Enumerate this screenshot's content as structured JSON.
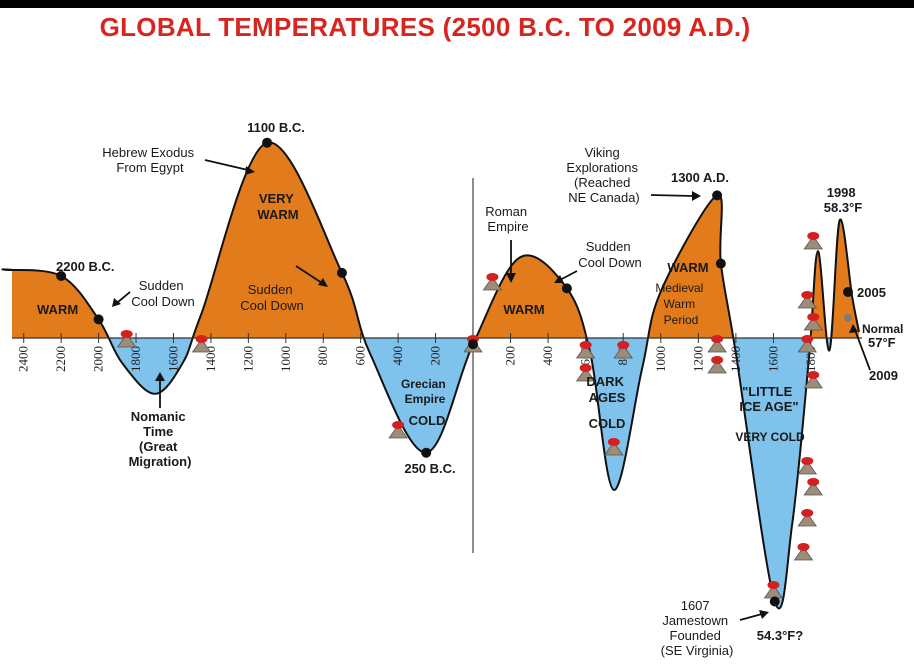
{
  "colors": {
    "title": "#d7261f",
    "warm": "#e27b1c",
    "cold": "#7fc2ec",
    "outline": "#111111",
    "normal": "#2e9a5c",
    "eruption": "#d42020",
    "volcano": "#9c8c78",
    "dot": "#111111"
  },
  "chart_data": {
    "type": "area",
    "title": "GLOBAL TEMPERATURES (2500 B.C. TO 2009 A.D.)",
    "baseline_label": "Normal",
    "baseline_value": "57°F",
    "x_ticks_bc": [
      "2400",
      "2200",
      "2000",
      "1800",
      "1600",
      "1400",
      "1200",
      "1000",
      "800",
      "600",
      "400",
      "200"
    ],
    "x_ticks_ad": [
      "200",
      "400",
      "600",
      "800",
      "1000",
      "1200",
      "1400",
      "1600",
      "1800"
    ],
    "curve": [
      {
        "year": -2500,
        "anomaly": 2.2
      },
      {
        "year": -2200,
        "anomaly": 2.0
      },
      {
        "year": -2000,
        "anomaly": 0.6
      },
      {
        "year": -1875,
        "anomaly": -0.8
      },
      {
        "year": -1700,
        "anomaly": -1.8
      },
      {
        "year": -1550,
        "anomaly": -0.8
      },
      {
        "year": -1450,
        "anomaly": 0.8
      },
      {
        "year": -1100,
        "anomaly": 6.3
      },
      {
        "year": -700,
        "anomaly": 2.1
      },
      {
        "year": -550,
        "anomaly": -0.5
      },
      {
        "year": -250,
        "anomaly": -3.7
      },
      {
        "year": 0,
        "anomaly": -0.2
      },
      {
        "year": 250,
        "anomaly": 2.6
      },
      {
        "year": 500,
        "anomaly": 1.6
      },
      {
        "year": 625,
        "anomaly": -0.5
      },
      {
        "year": 750,
        "anomaly": -4.9
      },
      {
        "year": 900,
        "anomaly": -1.0
      },
      {
        "year": 1000,
        "anomaly": 1.5
      },
      {
        "year": 1300,
        "anomaly": 4.6
      },
      {
        "year": 1320,
        "anomaly": 2.4
      },
      {
        "year": 1400,
        "anomaly": -0.5
      },
      {
        "year": 1607,
        "anomaly": -8.5
      },
      {
        "year": 1700,
        "anomaly": -6.0
      },
      {
        "year": 1790,
        "anomaly": -0.6
      },
      {
        "year": 1830,
        "anomaly": 2.8
      },
      {
        "year": 1880,
        "anomaly": -0.4
      },
      {
        "year": 1925,
        "anomaly": 3.8
      },
      {
        "year": 1980,
        "anomaly": 1.3
      },
      {
        "year": 2009,
        "anomaly": 0.2
      }
    ],
    "markers": [
      {
        "year": -2200,
        "label": "2200 B.C."
      },
      {
        "year": -1100,
        "label": "1100 B.C."
      },
      {
        "year": -250,
        "label": "250 B.C."
      },
      {
        "year": 1300,
        "label": "1300 A.D."
      },
      {
        "year": 1607,
        "label": "54.3°F?"
      },
      {
        "year": 1998,
        "label": "1998"
      },
      {
        "year": 2005,
        "label": "2005"
      },
      {
        "year": 2009,
        "label": "2009"
      }
    ]
  },
  "annotations": {
    "warm_1": "WARM",
    "marker_2200bc": "2200 B.C.",
    "sudden_cool_1": [
      "Sudden",
      "Cool Down"
    ],
    "nomanic": [
      "Nomanic",
      "Time",
      "(Great",
      "Migration)"
    ],
    "hebrew_exodus": [
      "Hebrew Exodus",
      "From Egypt"
    ],
    "marker_1100bc": "1100 B.C.",
    "very_warm": [
      "VERY",
      "WARM"
    ],
    "sudden_cool_2": [
      "Sudden",
      "Cool Down"
    ],
    "grecian": [
      "Grecian",
      "Empire"
    ],
    "cold_1": "COLD",
    "marker_250bc": "250 B.C.",
    "roman": [
      "Roman",
      "Empire"
    ],
    "warm_2": "WARM",
    "sudden_cool_3": [
      "Sudden",
      "Cool Down"
    ],
    "dark_ages": [
      "DARK",
      "AGES"
    ],
    "cold_2": "COLD",
    "viking": [
      "Viking",
      "Explorations",
      "(Reached",
      "NE Canada)"
    ],
    "marker_1300ad": "1300 A.D.",
    "warm_3": "WARM",
    "medieval": [
      "Medieval",
      "Warm",
      "Period"
    ],
    "little_ice_age": [
      "\"LITTLE",
      "ICE AGE\""
    ],
    "very_cold": "VERY COLD",
    "jamestown": [
      "1607",
      "Jamestown",
      "Founded",
      "(SE Virginia)"
    ],
    "low_temp": "54.3°F?",
    "marker_1998": [
      "1998",
      "58.3°F"
    ],
    "marker_2005": "2005",
    "marker_2009": "2009"
  }
}
